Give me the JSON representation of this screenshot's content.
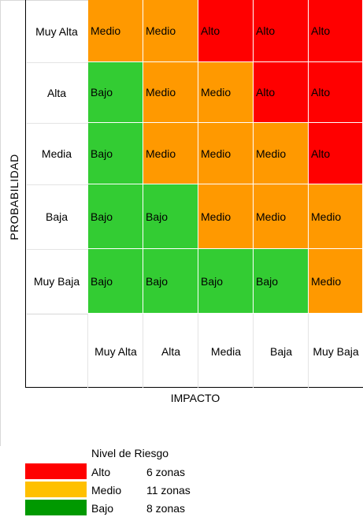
{
  "colors": {
    "alto": "#ff0000",
    "medio": "#ff9900",
    "bajo": "#33cc33",
    "legend_alto": "#ff0000",
    "legend_medio": "#ffc000",
    "legend_bajo": "#009900"
  },
  "y_axis_title": "PROBABILIDAD",
  "x_axis_title": "IMPACTO",
  "rows": [
    {
      "label": "Muy Alta",
      "cells": [
        "Medio",
        "Medio",
        "Alto",
        "Alto",
        "Alto"
      ]
    },
    {
      "label": "Alta",
      "cells": [
        "Bajo",
        "Medio",
        "Medio",
        "Alto",
        "Alto"
      ]
    },
    {
      "label": "Media",
      "cells": [
        "Bajo",
        "Medio",
        "Medio",
        "Medio",
        "Alto"
      ]
    },
    {
      "label": "Baja",
      "cells": [
        "Bajo",
        "Bajo",
        "Medio",
        "Medio",
        "Medio"
      ]
    },
    {
      "label": "Muy Baja",
      "cells": [
        "Bajo",
        "Bajo",
        "Bajo",
        "Bajo",
        "Medio"
      ]
    }
  ],
  "columns": [
    "Muy Alta",
    "Alta",
    "Media",
    "Baja",
    "Muy Baja"
  ],
  "legend": {
    "title": "Nivel de Riesgo",
    "items": [
      {
        "label": "Alto",
        "count": "6 zonas",
        "color_key": "legend_alto"
      },
      {
        "label": "Medio",
        "count": "11 zonas",
        "color_key": "legend_medio"
      },
      {
        "label": "Bajo",
        "count": "8 zonas",
        "color_key": "legend_bajo"
      }
    ]
  }
}
